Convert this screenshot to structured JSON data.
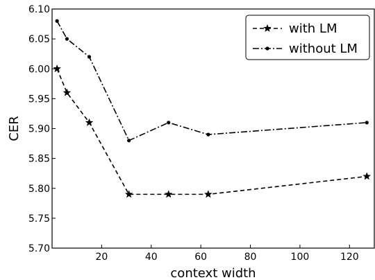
{
  "chart_data": {
    "type": "line",
    "title": "",
    "xlabel": "context width",
    "ylabel": "CER",
    "xlim": [
      0,
      130
    ],
    "ylim": [
      5.7,
      6.1
    ],
    "xticks": [
      20,
      40,
      60,
      80,
      100,
      120
    ],
    "xtick_labels": [
      "20",
      "40",
      "60",
      "80",
      "100",
      "120"
    ],
    "yticks": [
      5.7,
      5.75,
      5.8,
      5.85,
      5.9,
      5.95,
      6.0,
      6.05,
      6.1
    ],
    "ytick_labels": [
      "5.70",
      "5.75",
      "5.80",
      "5.85",
      "5.90",
      "5.95",
      "6.00",
      "6.05",
      "6.10"
    ],
    "grid": false,
    "legend_position": "top-right",
    "series": [
      {
        "name": "with LM",
        "linestyle": "dashed",
        "marker": "star",
        "color": "#000000",
        "x": [
          2,
          6,
          15,
          31,
          47,
          63,
          127
        ],
        "y": [
          6.0,
          5.96,
          5.91,
          5.79,
          5.79,
          5.79,
          5.82
        ]
      },
      {
        "name": "without LM",
        "linestyle": "dashdot",
        "marker": "dot",
        "color": "#000000",
        "x": [
          2,
          6,
          15,
          31,
          47,
          63,
          127
        ],
        "y": [
          6.08,
          6.05,
          6.02,
          5.88,
          5.91,
          5.89,
          5.91
        ]
      }
    ]
  }
}
